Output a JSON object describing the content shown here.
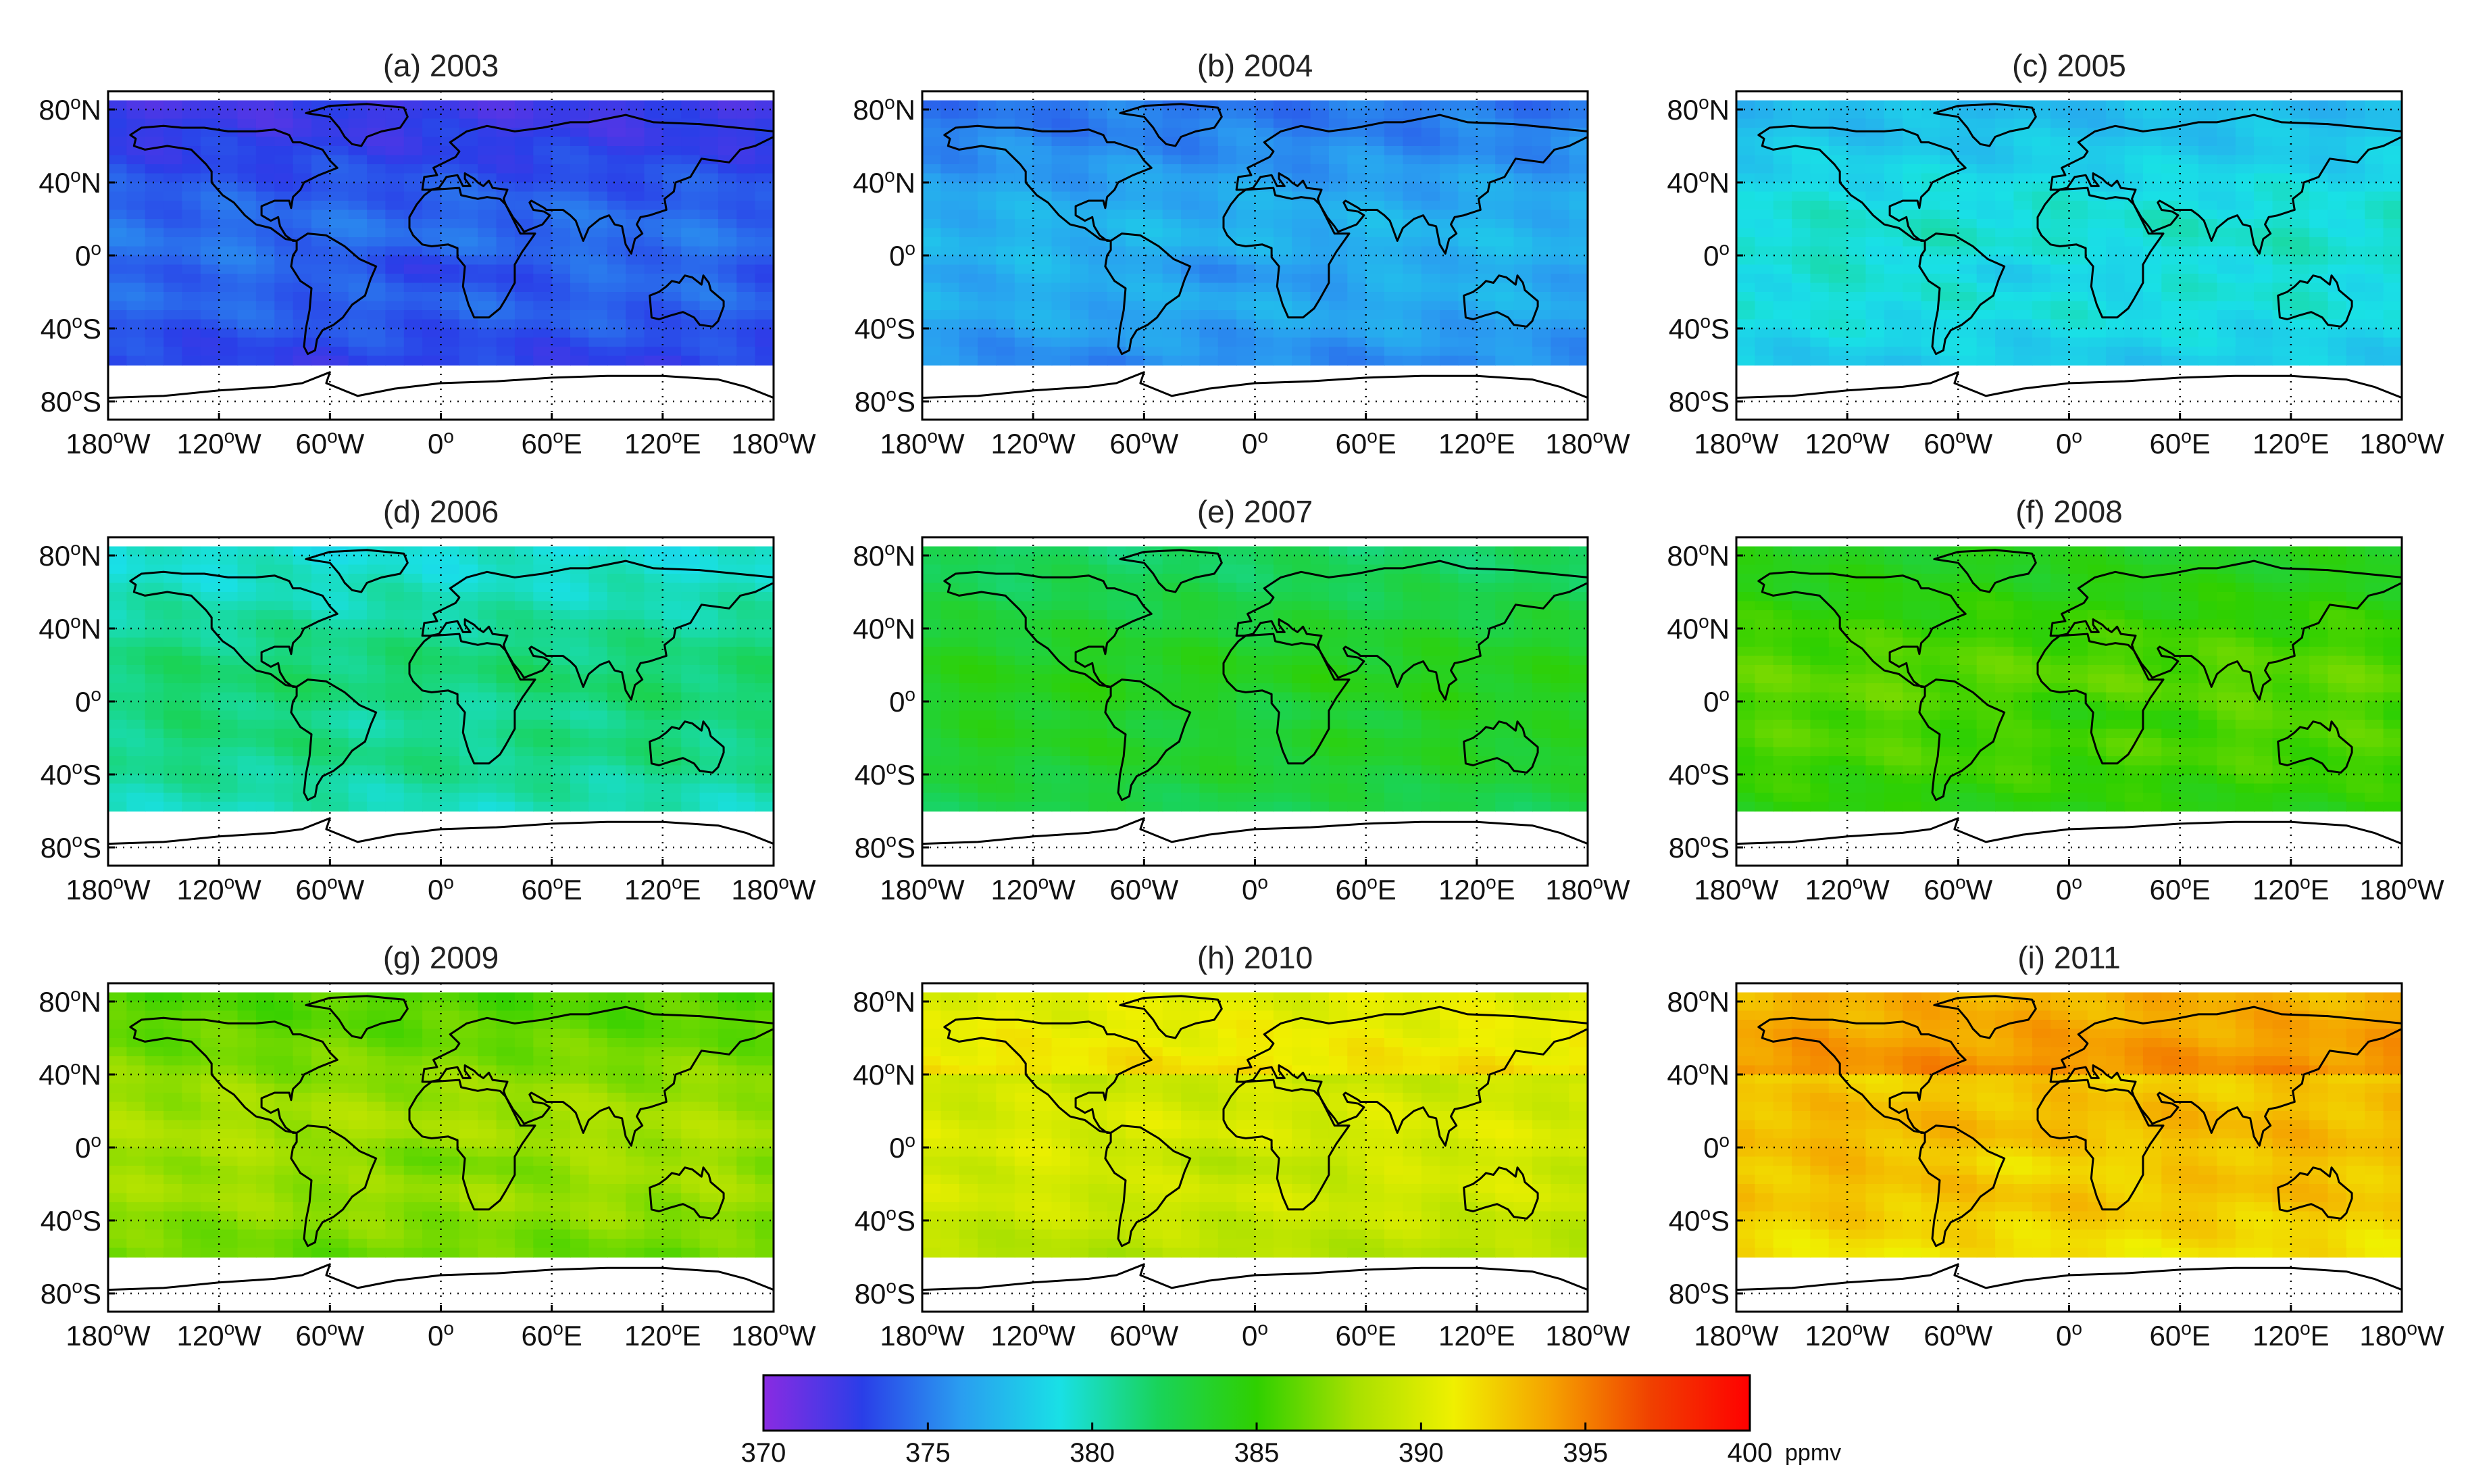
{
  "chart_data": {
    "type": "heatmap",
    "description_units": "ppmv",
    "colorbar": {
      "min": 370,
      "max": 400,
      "ticks": [
        "370",
        "375",
        "380",
        "385",
        "390",
        "395",
        "400"
      ],
      "unit": "ppmv",
      "colors": [
        "#8a2be2",
        "#2a3ee8",
        "#2a9df0",
        "#19e0e6",
        "#19d35a",
        "#2fd000",
        "#a8e000",
        "#f0f000",
        "#f5a000",
        "#f04000",
        "#ff0000"
      ]
    },
    "axes": {
      "xlim": [
        -180,
        180
      ],
      "ylim": [
        -90,
        90
      ],
      "x_ticks": [
        {
          "deg": "180",
          "sup": "o",
          "hemi": "W"
        },
        {
          "deg": "120",
          "sup": "o",
          "hemi": "W"
        },
        {
          "deg": "60",
          "sup": "o",
          "hemi": "W"
        },
        {
          "deg": "0",
          "sup": "o",
          "hemi": ""
        },
        {
          "deg": "60",
          "sup": "o",
          "hemi": "E"
        },
        {
          "deg": "120",
          "sup": "o",
          "hemi": "E"
        },
        {
          "deg": "180",
          "sup": "o",
          "hemi": "W"
        }
      ],
      "x_tick_values": [
        -180,
        -120,
        -60,
        0,
        60,
        120,
        180
      ],
      "y_ticks": [
        {
          "deg": "80",
          "sup": "o",
          "hemi": "N"
        },
        {
          "deg": "40",
          "sup": "o",
          "hemi": "N"
        },
        {
          "deg": "0",
          "sup": "o",
          "hemi": ""
        },
        {
          "deg": "40",
          "sup": "o",
          "hemi": "S"
        },
        {
          "deg": "80",
          "sup": "o",
          "hemi": "S"
        }
      ],
      "y_tick_values": [
        80,
        40,
        0,
        -40,
        -80
      ],
      "data_lat_range": [
        -60,
        85
      ],
      "grid": "dotted"
    },
    "panels": [
      {
        "title": "(a) 2003",
        "year": 2003,
        "mean_ppmv": 373.5
      },
      {
        "title": "(b) 2004",
        "year": 2004,
        "mean_ppmv": 376.0
      },
      {
        "title": "(c) 2005",
        "year": 2005,
        "mean_ppmv": 378.5
      },
      {
        "title": "(d) 2006",
        "year": 2006,
        "mean_ppmv": 380.5
      },
      {
        "title": "(e) 2007",
        "year": 2007,
        "mean_ppmv": 383.0
      },
      {
        "title": "(f) 2008",
        "year": 2008,
        "mean_ppmv": 385.0
      },
      {
        "title": "(g) 2009",
        "year": 2009,
        "mean_ppmv": 387.0
      },
      {
        "title": "(h) 2010",
        "year": 2010,
        "mean_ppmv": 389.0
      },
      {
        "title": "(i) 2011",
        "year": 2011,
        "mean_ppmv": 392.0
      }
    ]
  }
}
